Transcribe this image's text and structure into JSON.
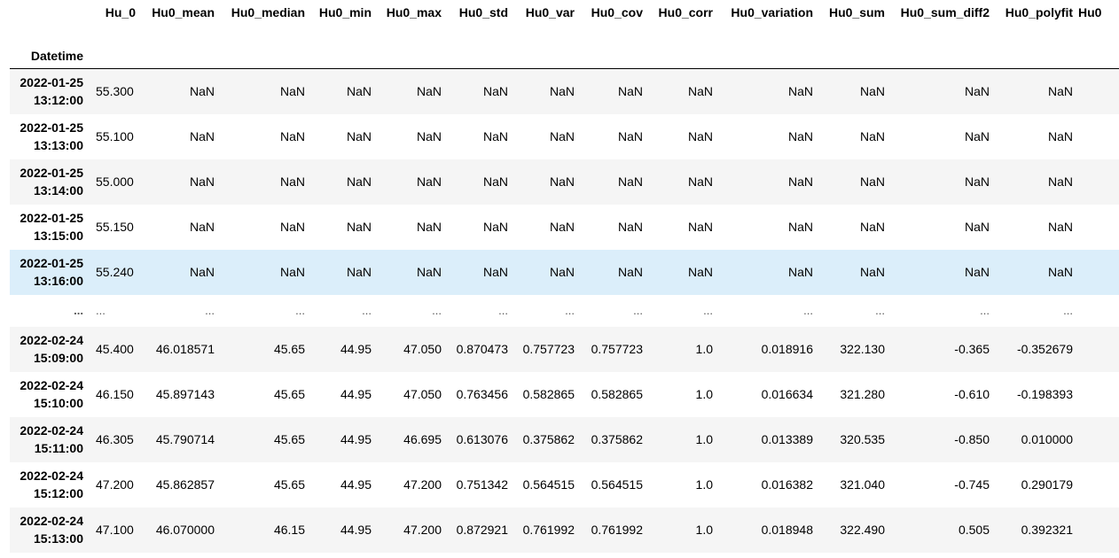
{
  "table": {
    "index_name": "Datetime",
    "columns": [
      "Hu_0",
      "Hu0_mean",
      "Hu0_median",
      "Hu0_min",
      "Hu0_max",
      "Hu0_std",
      "Hu0_var",
      "Hu0_cov",
      "Hu0_corr",
      "Hu0_variation",
      "Hu0_sum",
      "Hu0_sum_diff2",
      "Hu0_polyfit",
      "Hu0"
    ],
    "rows": [
      {
        "date": "2022-01-25",
        "time": "13:12:00",
        "cells": [
          "55.300",
          "NaN",
          "NaN",
          "NaN",
          "NaN",
          "NaN",
          "NaN",
          "NaN",
          "NaN",
          "NaN",
          "NaN",
          "NaN",
          "NaN",
          ""
        ]
      },
      {
        "date": "2022-01-25",
        "time": "13:13:00",
        "cells": [
          "55.100",
          "NaN",
          "NaN",
          "NaN",
          "NaN",
          "NaN",
          "NaN",
          "NaN",
          "NaN",
          "NaN",
          "NaN",
          "NaN",
          "NaN",
          ""
        ]
      },
      {
        "date": "2022-01-25",
        "time": "13:14:00",
        "cells": [
          "55.000",
          "NaN",
          "NaN",
          "NaN",
          "NaN",
          "NaN",
          "NaN",
          "NaN",
          "NaN",
          "NaN",
          "NaN",
          "NaN",
          "NaN",
          ""
        ]
      },
      {
        "date": "2022-01-25",
        "time": "13:15:00",
        "cells": [
          "55.150",
          "NaN",
          "NaN",
          "NaN",
          "NaN",
          "NaN",
          "NaN",
          "NaN",
          "NaN",
          "NaN",
          "NaN",
          "NaN",
          "NaN",
          ""
        ]
      },
      {
        "date": "2022-01-25",
        "time": "13:16:00",
        "cells": [
          "55.240",
          "NaN",
          "NaN",
          "NaN",
          "NaN",
          "NaN",
          "NaN",
          "NaN",
          "NaN",
          "NaN",
          "NaN",
          "NaN",
          "NaN",
          ""
        ]
      },
      {
        "date": "...",
        "time": "",
        "cells": [
          "...",
          "...",
          "...",
          "...",
          "...",
          "...",
          "...",
          "...",
          "...",
          "...",
          "...",
          "...",
          "...",
          ""
        ]
      },
      {
        "date": "2022-02-24",
        "time": "15:09:00",
        "cells": [
          "45.400",
          "46.018571",
          "45.65",
          "44.95",
          "47.050",
          "0.870473",
          "0.757723",
          "0.757723",
          "1.0",
          "0.018916",
          "322.130",
          "-0.365",
          "-0.352679",
          ""
        ]
      },
      {
        "date": "2022-02-24",
        "time": "15:10:00",
        "cells": [
          "46.150",
          "45.897143",
          "45.65",
          "44.95",
          "47.050",
          "0.763456",
          "0.582865",
          "0.582865",
          "1.0",
          "0.016634",
          "321.280",
          "-0.610",
          "-0.198393",
          ""
        ]
      },
      {
        "date": "2022-02-24",
        "time": "15:11:00",
        "cells": [
          "46.305",
          "45.790714",
          "45.65",
          "44.95",
          "46.695",
          "0.613076",
          "0.375862",
          "0.375862",
          "1.0",
          "0.013389",
          "320.535",
          "-0.850",
          "0.010000",
          ""
        ]
      },
      {
        "date": "2022-02-24",
        "time": "15:12:00",
        "cells": [
          "47.200",
          "45.862857",
          "45.65",
          "44.95",
          "47.200",
          "0.751342",
          "0.564515",
          "0.564515",
          "1.0",
          "0.016382",
          "321.040",
          "-0.745",
          "0.290179",
          ""
        ]
      },
      {
        "date": "2022-02-24",
        "time": "15:13:00",
        "cells": [
          "47.100",
          "46.070000",
          "46.15",
          "44.95",
          "47.200",
          "0.872921",
          "0.761992",
          "0.761992",
          "1.0",
          "0.018948",
          "322.490",
          "0.505",
          "0.392321",
          ""
        ]
      }
    ]
  },
  "colors": {
    "stripe": "#f5f5f5",
    "hover_highlight": "#dbeefa",
    "header_rule": "#000000"
  }
}
